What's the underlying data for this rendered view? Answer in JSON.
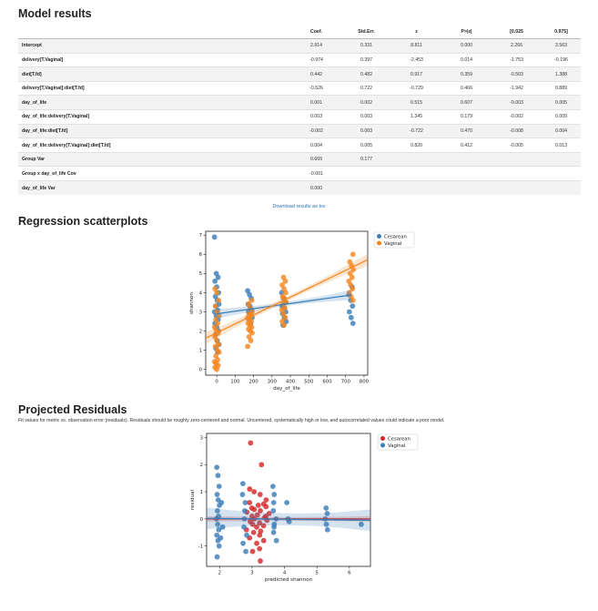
{
  "model_results": {
    "title": "Model results",
    "columns": [
      "",
      "Coef.",
      "Std.Err.",
      "z",
      "P>|z|",
      "[0.025",
      "0.975]"
    ],
    "rows": [
      [
        "Intercept",
        "2.914",
        "0.331",
        "8.811",
        "0.000",
        "2.266",
        "3.563"
      ],
      [
        "delivery[T.Vaginal]",
        "-0.974",
        "0.397",
        "-2.453",
        "0.014",
        "-1.753",
        "-0.196"
      ],
      [
        "diet[T.fd]",
        "0.442",
        "0.482",
        "0.917",
        "0.359",
        "-0.503",
        "1.388"
      ],
      [
        "delivery[T.Vaginal]:diet[T.fd]",
        "-0.526",
        "0.722",
        "-0.729",
        "0.466",
        "-1.942",
        "0.889"
      ],
      [
        "day_of_life",
        "0.001",
        "0.002",
        "0.515",
        "0.607",
        "-0.003",
        "0.005"
      ],
      [
        "day_of_life:delivery[T.Vaginal]",
        "0.003",
        "0.003",
        "1.345",
        "0.179",
        "-0.002",
        "0.009"
      ],
      [
        "day_of_life:diet[T.fd]",
        "-0.002",
        "0.003",
        "-0.722",
        "0.470",
        "-0.008",
        "0.004"
      ],
      [
        "day_of_life:delivery[T.Vaginal]:diet[T.fd]",
        "0.004",
        "0.005",
        "0.820",
        "0.412",
        "-0.005",
        "0.013"
      ],
      [
        "Group Var",
        "0.669",
        "0.177",
        "",
        "",
        "",
        ""
      ],
      [
        "Group x day_of_life Cov",
        "-0.001",
        "",
        "",
        "",
        "",
        ""
      ],
      [
        "day_of_life Var",
        "0.000",
        "",
        "",
        "",
        "",
        ""
      ]
    ],
    "download_label": "Download results as tsv"
  },
  "regression": {
    "title": "Regression scatterplots"
  },
  "residuals": {
    "title": "Projected Residuals",
    "description": "Fit values for metric vs. observation error (residuals). Residuals should be roughly zero-centered and normal. Uncentered, systematically high or low, and autocorrelated values could indicate a poor model."
  },
  "colors": {
    "cesarean_scatter": "#3a7eb8",
    "vaginal_scatter": "#f5861f",
    "cesarean_residual": "#d62728",
    "vaginal_residual": "#3a7eb8"
  },
  "chart_data": [
    {
      "type": "scatter",
      "xlabel": "day_of_life",
      "ylabel": "shannon",
      "xlim": [
        -60,
        820
      ],
      "ylim": [
        -0.3,
        7.2
      ],
      "xticks": [
        0,
        100,
        200,
        300,
        400,
        500,
        600,
        700,
        800
      ],
      "yticks": [
        0,
        1,
        2,
        3,
        4,
        5,
        6,
        7
      ],
      "legend": "top-right",
      "series": [
        {
          "name": "Cesarean",
          "points": [
            [
              0,
              6.9
            ],
            [
              0,
              5.0
            ],
            [
              0,
              4.8
            ],
            [
              0,
              4.6
            ],
            [
              0,
              4.3
            ],
            [
              0,
              4.0
            ],
            [
              0,
              3.8
            ],
            [
              0,
              3.6
            ],
            [
              0,
              3.4
            ],
            [
              0,
              3.3
            ],
            [
              0,
              3.1
            ],
            [
              0,
              3.0
            ],
            [
              0,
              2.8
            ],
            [
              0,
              2.6
            ],
            [
              0,
              2.4
            ],
            [
              0,
              2.2
            ],
            [
              0,
              2.0
            ],
            [
              0,
              1.8
            ],
            [
              0,
              1.5
            ],
            [
              0,
              1.3
            ],
            [
              0,
              1.1
            ],
            [
              0,
              0.9
            ],
            [
              180,
              4.1
            ],
            [
              180,
              3.9
            ],
            [
              180,
              3.7
            ],
            [
              180,
              3.4
            ],
            [
              180,
              3.3
            ],
            [
              180,
              3.1
            ],
            [
              180,
              3.0
            ],
            [
              180,
              2.9
            ],
            [
              180,
              2.7
            ],
            [
              180,
              2.6
            ],
            [
              180,
              2.4
            ],
            [
              365,
              4.0
            ],
            [
              365,
              3.7
            ],
            [
              365,
              3.5
            ],
            [
              365,
              3.3
            ],
            [
              365,
              3.2
            ],
            [
              365,
              3.0
            ],
            [
              365,
              2.9
            ],
            [
              365,
              2.7
            ],
            [
              365,
              2.5
            ],
            [
              365,
              2.3
            ],
            [
              730,
              4.3
            ],
            [
              730,
              3.9
            ],
            [
              730,
              3.6
            ],
            [
              730,
              3.3
            ],
            [
              730,
              3.0
            ],
            [
              730,
              2.7
            ],
            [
              730,
              2.4
            ]
          ],
          "fit": [
            [
              0,
              2.9
            ],
            [
              730,
              3.88
            ]
          ]
        },
        {
          "name": "Vaginal",
          "points": [
            [
              0,
              4.2
            ],
            [
              0,
              4.0
            ],
            [
              0,
              3.6
            ],
            [
              0,
              3.3
            ],
            [
              0,
              3.0
            ],
            [
              0,
              2.8
            ],
            [
              0,
              2.6
            ],
            [
              0,
              2.4
            ],
            [
              0,
              2.2
            ],
            [
              0,
              2.0
            ],
            [
              0,
              1.9
            ],
            [
              0,
              1.7
            ],
            [
              0,
              1.5
            ],
            [
              0,
              1.3
            ],
            [
              0,
              1.2
            ],
            [
              0,
              1.0
            ],
            [
              0,
              0.9
            ],
            [
              0,
              0.7
            ],
            [
              0,
              0.5
            ],
            [
              0,
              0.4
            ],
            [
              0,
              0.3
            ],
            [
              0,
              0.2
            ],
            [
              0,
              0.1
            ],
            [
              0,
              0.0
            ],
            [
              180,
              3.6
            ],
            [
              180,
              3.4
            ],
            [
              180,
              3.2
            ],
            [
              180,
              3.0
            ],
            [
              180,
              2.9
            ],
            [
              180,
              2.8
            ],
            [
              180,
              2.7
            ],
            [
              180,
              2.6
            ],
            [
              180,
              2.5
            ],
            [
              180,
              2.4
            ],
            [
              180,
              2.3
            ],
            [
              180,
              2.2
            ],
            [
              180,
              2.1
            ],
            [
              180,
              2.0
            ],
            [
              180,
              1.9
            ],
            [
              180,
              1.7
            ],
            [
              180,
              1.5
            ],
            [
              180,
              1.2
            ],
            [
              365,
              4.8
            ],
            [
              365,
              4.6
            ],
            [
              365,
              4.4
            ],
            [
              365,
              4.2
            ],
            [
              365,
              4.0
            ],
            [
              365,
              3.8
            ],
            [
              365,
              3.7
            ],
            [
              365,
              3.5
            ],
            [
              365,
              3.4
            ],
            [
              365,
              3.2
            ],
            [
              365,
              3.1
            ],
            [
              365,
              2.9
            ],
            [
              365,
              2.7
            ],
            [
              365,
              2.5
            ],
            [
              365,
              2.3
            ],
            [
              730,
              6.0
            ],
            [
              730,
              5.6
            ],
            [
              730,
              5.4
            ],
            [
              730,
              5.2
            ],
            [
              730,
              5.0
            ],
            [
              730,
              4.8
            ],
            [
              730,
              4.6
            ],
            [
              730,
              4.4
            ],
            [
              730,
              4.2
            ],
            [
              730,
              4.0
            ],
            [
              730,
              3.8
            ],
            [
              730,
              3.6
            ]
          ],
          "fit": [
            [
              -60,
              1.63
            ],
            [
              820,
              5.72
            ]
          ]
        }
      ]
    },
    {
      "type": "scatter",
      "xlabel": "predicted shannon",
      "ylabel": "residual",
      "xlim": [
        1.6,
        6.65
      ],
      "ylim": [
        -1.75,
        3.15
      ],
      "xticks": [
        2,
        3,
        4,
        5,
        6
      ],
      "yticks": [
        -1,
        0,
        1,
        2,
        3
      ],
      "legend": "top-right",
      "series": [
        {
          "name": "Cesarean",
          "points": [
            [
              3.0,
              2.8
            ],
            [
              3.3,
              2.0
            ],
            [
              2.9,
              1.1
            ],
            [
              3.1,
              1.0
            ],
            [
              3.25,
              0.9
            ],
            [
              3.4,
              0.7
            ],
            [
              2.95,
              0.6
            ],
            [
              3.35,
              0.55
            ],
            [
              3.15,
              0.5
            ],
            [
              3.45,
              0.45
            ],
            [
              3.05,
              0.35
            ],
            [
              3.3,
              0.3
            ],
            [
              2.85,
              0.25
            ],
            [
              3.5,
              0.2
            ],
            [
              3.2,
              0.15
            ],
            [
              3.0,
              0.1
            ],
            [
              3.35,
              0.05
            ],
            [
              3.1,
              0.0
            ],
            [
              3.45,
              -0.05
            ],
            [
              2.9,
              -0.1
            ],
            [
              3.25,
              -0.15
            ],
            [
              3.0,
              -0.2
            ],
            [
              3.4,
              -0.25
            ],
            [
              3.15,
              -0.3
            ],
            [
              2.8,
              -0.4
            ],
            [
              3.3,
              -0.45
            ],
            [
              3.05,
              -0.5
            ],
            [
              3.2,
              -0.6
            ],
            [
              2.95,
              -0.7
            ],
            [
              3.35,
              -0.8
            ],
            [
              3.1,
              -0.9
            ],
            [
              3.25,
              -1.1
            ],
            [
              3.0,
              -1.2
            ],
            [
              3.3,
              -1.55
            ],
            [
              3.0,
              0.4
            ],
            [
              3.4,
              0.1
            ]
          ],
          "fit": [
            [
              1.6,
              0.0
            ],
            [
              6.65,
              0.0
            ]
          ]
        },
        {
          "name": "Vaginal",
          "points": [
            [
              1.95,
              1.9
            ],
            [
              1.95,
              1.6
            ],
            [
              1.95,
              1.2
            ],
            [
              1.95,
              0.9
            ],
            [
              1.95,
              0.7
            ],
            [
              1.95,
              0.5
            ],
            [
              1.95,
              0.3
            ],
            [
              1.95,
              0.1
            ],
            [
              1.95,
              0.0
            ],
            [
              1.95,
              -0.2
            ],
            [
              1.95,
              -0.4
            ],
            [
              1.95,
              -0.6
            ],
            [
              1.95,
              -0.8
            ],
            [
              1.95,
              -1.0
            ],
            [
              1.95,
              -1.4
            ],
            [
              2.05,
              0.6
            ],
            [
              2.05,
              -0.3
            ],
            [
              2.05,
              -0.7
            ],
            [
              2.7,
              1.3
            ],
            [
              2.75,
              0.9
            ],
            [
              2.8,
              0.6
            ],
            [
              2.75,
              0.3
            ],
            [
              2.8,
              0.0
            ],
            [
              2.75,
              -0.3
            ],
            [
              2.8,
              -0.6
            ],
            [
              2.75,
              -0.9
            ],
            [
              2.8,
              -1.2
            ],
            [
              3.6,
              1.2
            ],
            [
              3.7,
              0.9
            ],
            [
              3.65,
              0.6
            ],
            [
              3.7,
              0.3
            ],
            [
              3.75,
              0.0
            ],
            [
              3.65,
              -0.3
            ],
            [
              3.7,
              -0.5
            ],
            [
              3.75,
              -0.8
            ],
            [
              3.65,
              -0.2
            ],
            [
              4.1,
              0.6
            ],
            [
              4.1,
              0.0
            ],
            [
              4.1,
              -0.1
            ],
            [
              5.3,
              0.4
            ],
            [
              5.3,
              0.2
            ],
            [
              5.3,
              0.0
            ],
            [
              5.3,
              -0.2
            ],
            [
              5.3,
              -0.4
            ],
            [
              6.4,
              -0.2
            ]
          ],
          "fit": [
            [
              1.6,
              0.02
            ],
            [
              6.65,
              -0.05
            ]
          ]
        }
      ]
    }
  ]
}
